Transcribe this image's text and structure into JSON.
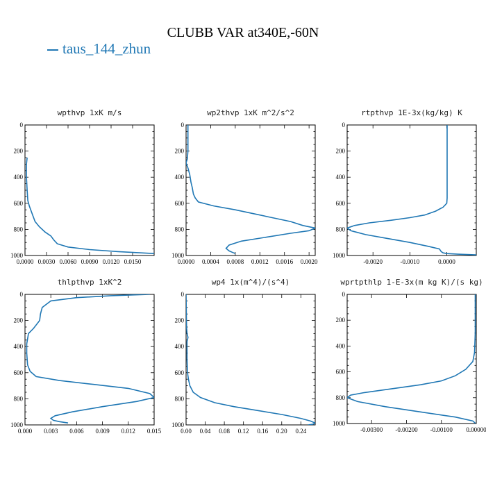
{
  "title": "CLUBB VAR at340E,-60N",
  "legend": {
    "label": "taus_144_zhun",
    "color": "#1f77b4"
  },
  "chart_data": [
    {
      "type": "line",
      "title": "wpthvp  1xK m/s",
      "xlim": [
        0,
        0.018
      ],
      "ylim": [
        1000,
        0
      ],
      "xticks": [
        "0.0000",
        "0.0030",
        "0.0060",
        "0.0090",
        "0.0120",
        "0.0150"
      ],
      "xtick_values": [
        0,
        0.003,
        0.006,
        0.009,
        0.012,
        0.015
      ],
      "yticks": [
        "0",
        "200",
        "400",
        "600",
        "800",
        "1000"
      ],
      "series": [
        {
          "color": "#1f77b4",
          "x": [
            0.0003,
            0.0002,
            0.0002,
            0.0003,
            0.0004,
            0.0006,
            0.001,
            0.0014,
            0.002,
            0.0028,
            0.0036,
            0.004,
            0.0045,
            0.006,
            0.009,
            0.013,
            0.018
          ],
          "y": [
            250,
            300,
            400,
            500,
            580,
            620,
            680,
            740,
            780,
            820,
            850,
            880,
            910,
            935,
            955,
            970,
            985
          ]
        }
      ]
    },
    {
      "type": "line",
      "title": "wp2thvp  1xK m^2/s^2",
      "xlim": [
        0,
        0.0021
      ],
      "ylim": [
        1000,
        0
      ],
      "xticks": [
        "0.0000",
        "0.0004",
        "0.0008",
        "0.0012",
        "0.0016",
        "0.0020"
      ],
      "xtick_values": [
        0,
        0.0004,
        0.0008,
        0.0012,
        0.0016,
        0.002
      ],
      "yticks": [
        "0",
        "200",
        "400",
        "600",
        "800",
        "1000"
      ],
      "series": [
        {
          "color": "#1f77b4",
          "x": [
            3e-05,
            3e-05,
            2e-05,
            0.0,
            3e-05,
            6e-05,
            8e-05,
            0.0001,
            0.00012,
            0.00015,
            0.0002,
            0.00045,
            0.0008,
            0.0011,
            0.0014,
            0.0017,
            0.0019,
            0.0021,
            0.002,
            0.0017,
            0.0013,
            0.0009,
            0.0007,
            0.00065,
            0.0007,
            0.00075,
            0.0008
          ],
          "y": [
            0,
            200,
            260,
            290,
            330,
            380,
            440,
            480,
            530,
            560,
            590,
            620,
            650,
            680,
            710,
            740,
            770,
            790,
            810,
            830,
            860,
            890,
            920,
            945,
            965,
            975,
            985
          ]
        }
      ]
    },
    {
      "type": "line",
      "title": "rtpthvp  1E-3x(kg/kg) K",
      "xlim": [
        -0.0027,
        0.0008
      ],
      "ylim": [
        1000,
        0
      ],
      "xticks": [
        "-0.0020",
        "-0.0010",
        "0.0000"
      ],
      "xtick_values": [
        -0.002,
        -0.001,
        0
      ],
      "yticks": [
        "0",
        "200",
        "400",
        "600",
        "800",
        "1000"
      ],
      "series": [
        {
          "color": "#1f77b4",
          "x": [
            1e-05,
            1e-05,
            1e-05,
            0.0,
            -0.0001,
            -0.0003,
            -0.0006,
            -0.001,
            -0.0015,
            -0.0021,
            -0.0025,
            -0.0027,
            -0.0026,
            -0.0022,
            -0.0016,
            -0.001,
            -0.0005,
            -0.0002,
            -0.00015,
            -0.0001,
            0.0,
            0.0003,
            0.0008
          ],
          "y": [
            0,
            400,
            560,
            600,
            630,
            660,
            690,
            710,
            730,
            750,
            770,
            790,
            810,
            840,
            870,
            900,
            930,
            950,
            970,
            980,
            985,
            990,
            995
          ]
        }
      ]
    },
    {
      "type": "line",
      "title": "thlpthvp  1xK^2",
      "xlim": [
        0,
        0.015
      ],
      "ylim": [
        1000,
        0
      ],
      "xticks": [
        "0.000",
        "0.003",
        "0.006",
        "0.009",
        "0.012",
        "0.015"
      ],
      "xtick_values": [
        0,
        0.003,
        0.006,
        0.009,
        0.012,
        0.015
      ],
      "yticks": [
        "0",
        "200",
        "400",
        "600",
        "800",
        "1000"
      ],
      "series": [
        {
          "color": "#1f77b4",
          "x": [
            0.0145,
            0.01,
            0.006,
            0.003,
            0.002,
            0.0018,
            0.0017,
            0.001,
            0.0004,
            0.0002,
            0.0002,
            0.0003,
            0.0006,
            0.0013,
            0.004,
            0.008,
            0.012,
            0.0145,
            0.015,
            0.013,
            0.009,
            0.0055,
            0.0035,
            0.003,
            0.0033,
            0.004,
            0.005
          ],
          "y": [
            0,
            10,
            25,
            50,
            100,
            150,
            200,
            260,
            300,
            380,
            450,
            540,
            590,
            630,
            660,
            690,
            720,
            760,
            790,
            820,
            860,
            900,
            930,
            950,
            965,
            975,
            985
          ]
        }
      ]
    },
    {
      "type": "line",
      "title": "wp4  1x(m^4)/(s^4)",
      "xlim": [
        0,
        0.27
      ],
      "ylim": [
        1000,
        0
      ],
      "xticks": [
        "0.00",
        "0.04",
        "0.08",
        "0.12",
        "0.16",
        "0.20",
        "0.24"
      ],
      "xtick_values": [
        0,
        0.04,
        0.08,
        0.12,
        0.16,
        0.2,
        0.24
      ],
      "yticks": [
        "0",
        "200",
        "400",
        "600",
        "800",
        "1000"
      ],
      "series": [
        {
          "color": "#1f77b4",
          "x": [
            0.0,
            0.001,
            0.002,
            0.004,
            0.002,
            0.002,
            0.003,
            0.005,
            0.008,
            0.015,
            0.03,
            0.06,
            0.1,
            0.15,
            0.2,
            0.24,
            0.26,
            0.27,
            0.265,
            0.255
          ],
          "y": [
            0,
            250,
            300,
            330,
            360,
            500,
            600,
            650,
            700,
            750,
            790,
            830,
            860,
            890,
            920,
            950,
            970,
            985,
            995,
            1000
          ]
        }
      ]
    },
    {
      "type": "line",
      "title": "wprtpthlp  1-E-3x(m kg K)/(s kg)",
      "xlim": [
        -0.0037,
        0.0
      ],
      "ylim": [
        1000,
        0
      ],
      "xticks": [
        "-0.00300",
        "-0.00200",
        "-0.00100",
        "0.00000"
      ],
      "xtick_values": [
        -0.003,
        -0.002,
        -0.001,
        0
      ],
      "yticks": [
        "0",
        "200",
        "400",
        "600",
        "800",
        "1000"
      ],
      "series": [
        {
          "color": "#1f77b4",
          "x": [
            -3e-05,
            -3e-05,
            -5e-05,
            -0.0001,
            -0.0003,
            -0.0006,
            -0.001,
            -0.0016,
            -0.0024,
            -0.0032,
            -0.0036,
            -0.0037,
            -0.0034,
            -0.0026,
            -0.0016,
            -0.0006,
            -0.0001,
            -2e-05
          ],
          "y": [
            0,
            300,
            450,
            520,
            580,
            630,
            670,
            700,
            730,
            760,
            780,
            800,
            830,
            870,
            910,
            950,
            980,
            1000
          ]
        }
      ]
    }
  ]
}
